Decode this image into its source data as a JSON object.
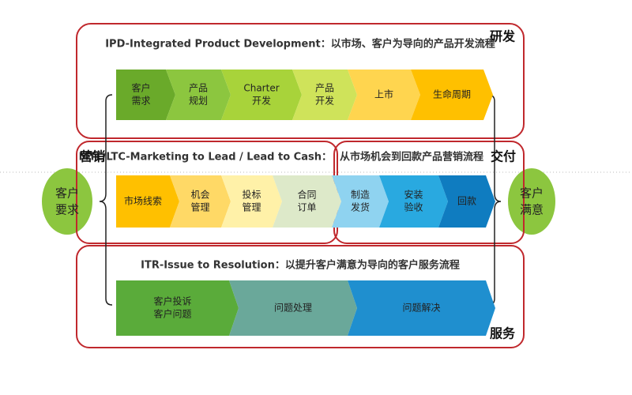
{
  "sections": {
    "rd": {
      "label": "研发",
      "title": "IPD-Integrated Product Development：以市场、客户为导向的产品开发流程"
    },
    "marketing": {
      "label": "营销",
      "title": "MTL/LTC-Marketing to Lead / Lead to Cash："
    },
    "delivery": {
      "label": "交付",
      "title": "从市场机会到回款产品营销流程"
    },
    "service": {
      "label": "服务",
      "title": "ITR-Issue to Resolution：以提升客户满意为导向的客户服务流程"
    }
  },
  "circles": {
    "left": [
      "客户",
      "要求"
    ],
    "right": [
      "客户",
      "满意"
    ]
  },
  "rows": [
    [
      [
        "客户",
        "需求"
      ],
      [
        "产品",
        "规划"
      ],
      [
        "Charter",
        "开发"
      ],
      [
        "产品",
        "开发"
      ],
      [
        "上市"
      ],
      [
        "生命周期"
      ]
    ],
    [
      [
        "市场线索"
      ],
      [
        "机会",
        "管理"
      ],
      [
        "投标",
        "管理"
      ],
      [
        "合同",
        "订单"
      ],
      [
        "制造",
        "发货"
      ],
      [
        "安装",
        "验收"
      ],
      [
        "回款"
      ]
    ],
    [
      [
        "客户投诉",
        "客户问题"
      ],
      [
        "问题处理"
      ],
      [
        "问题解决"
      ]
    ]
  ]
}
